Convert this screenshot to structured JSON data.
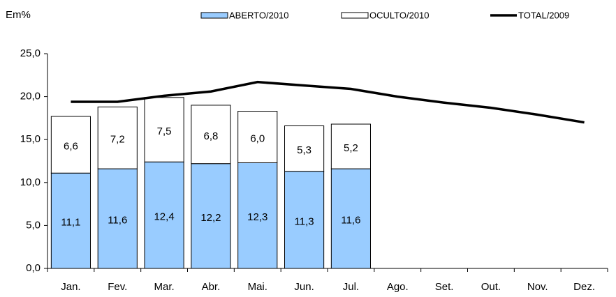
{
  "chart_data": {
    "type": "bar",
    "stacked": true,
    "y_label": "Em%",
    "categories": [
      "Jan.",
      "Fev.",
      "Mar.",
      "Abr.",
      "Mai.",
      "Jun.",
      "Jul.",
      "Ago.",
      "Set.",
      "Out.",
      "Nov.",
      "Dez."
    ],
    "series": [
      {
        "name": "ABERTO/2010",
        "type": "bar",
        "color": "#99ccff",
        "values": [
          11.1,
          11.6,
          12.4,
          12.2,
          12.3,
          11.3,
          11.6,
          null,
          null,
          null,
          null,
          null
        ],
        "value_labels": [
          "11,1",
          "11,6",
          "12,4",
          "12,2",
          "12,3",
          "11,3",
          "11,6",
          null,
          null,
          null,
          null,
          null
        ]
      },
      {
        "name": "OCULTO/2010",
        "type": "bar",
        "color": "#ffffff",
        "values": [
          6.6,
          7.2,
          7.5,
          6.8,
          6.0,
          5.3,
          5.2,
          null,
          null,
          null,
          null,
          null
        ],
        "value_labels": [
          "6,6",
          "7,2",
          "7,5",
          "6,8",
          "6,0",
          "5,3",
          "5,2",
          null,
          null,
          null,
          null,
          null
        ]
      },
      {
        "name": "TOTAL/2009",
        "type": "line",
        "color": "#000000",
        "values": [
          19.4,
          19.4,
          20.1,
          20.6,
          21.7,
          21.3,
          20.9,
          20.0,
          19.3,
          18.7,
          17.9,
          17.0
        ]
      }
    ],
    "ylim": [
      0,
      25
    ],
    "yticks": [
      {
        "value": 0,
        "label": "0,0"
      },
      {
        "value": 5,
        "label": "5,0"
      },
      {
        "value": 10,
        "label": "10,0"
      },
      {
        "value": 15,
        "label": "15,0"
      },
      {
        "value": 20,
        "label": "20,0"
      },
      {
        "value": 25,
        "label": "25,0"
      }
    ],
    "grid": false,
    "legend": "top"
  }
}
